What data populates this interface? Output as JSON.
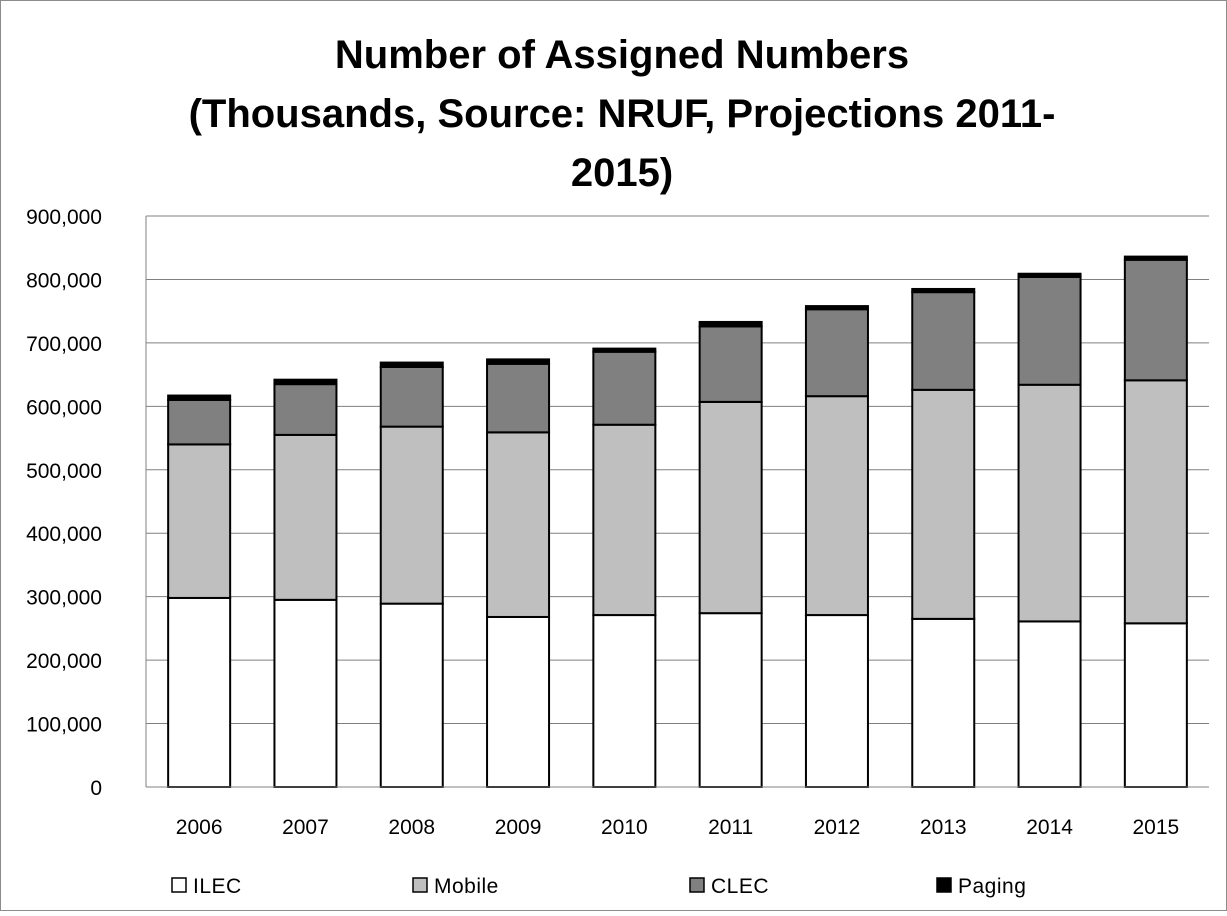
{
  "chart_data": {
    "type": "bar",
    "stacked": true,
    "title_lines": [
      "Number of Assigned Numbers",
      "(Thousands, Source:  NRUF, Projections 2011-",
      "2015)"
    ],
    "categories": [
      "2006",
      "2007",
      "2008",
      "2009",
      "2010",
      "2011",
      "2012",
      "2013",
      "2014",
      "2015"
    ],
    "series": [
      {
        "name": "ILEC",
        "color": "#ffffff",
        "values": [
          298000,
          295000,
          289000,
          268000,
          271000,
          274000,
          271000,
          265000,
          261000,
          258000
        ]
      },
      {
        "name": "Mobile",
        "color": "#bfbfbf",
        "values": [
          242000,
          260000,
          279000,
          291000,
          300000,
          333000,
          345000,
          361000,
          373000,
          383000
        ]
      },
      {
        "name": "CLEC",
        "color": "#808080",
        "values": [
          70000,
          80000,
          94000,
          108000,
          115000,
          119000,
          137000,
          154000,
          170000,
          190000
        ]
      },
      {
        "name": "Paging",
        "color": "#000000",
        "values": [
          7000,
          7000,
          7000,
          7000,
          5000,
          7000,
          5000,
          5000,
          5000,
          5000
        ]
      }
    ],
    "ylim": [
      0,
      900000
    ],
    "yticks": [
      {
        "value": 0,
        "label": "0"
      },
      {
        "value": 100000,
        "label": "100,000"
      },
      {
        "value": 200000,
        "label": "200,000"
      },
      {
        "value": 300000,
        "label": "300,000"
      },
      {
        "value": 400000,
        "label": "400,000"
      },
      {
        "value": 500000,
        "label": "500,000"
      },
      {
        "value": 600000,
        "label": "600,000"
      },
      {
        "value": 700000,
        "label": "700,000"
      },
      {
        "value": 800000,
        "label": "800,000"
      },
      {
        "value": 900000,
        "label": "900,000"
      }
    ],
    "grid": true,
    "legend_position": "bottom"
  }
}
